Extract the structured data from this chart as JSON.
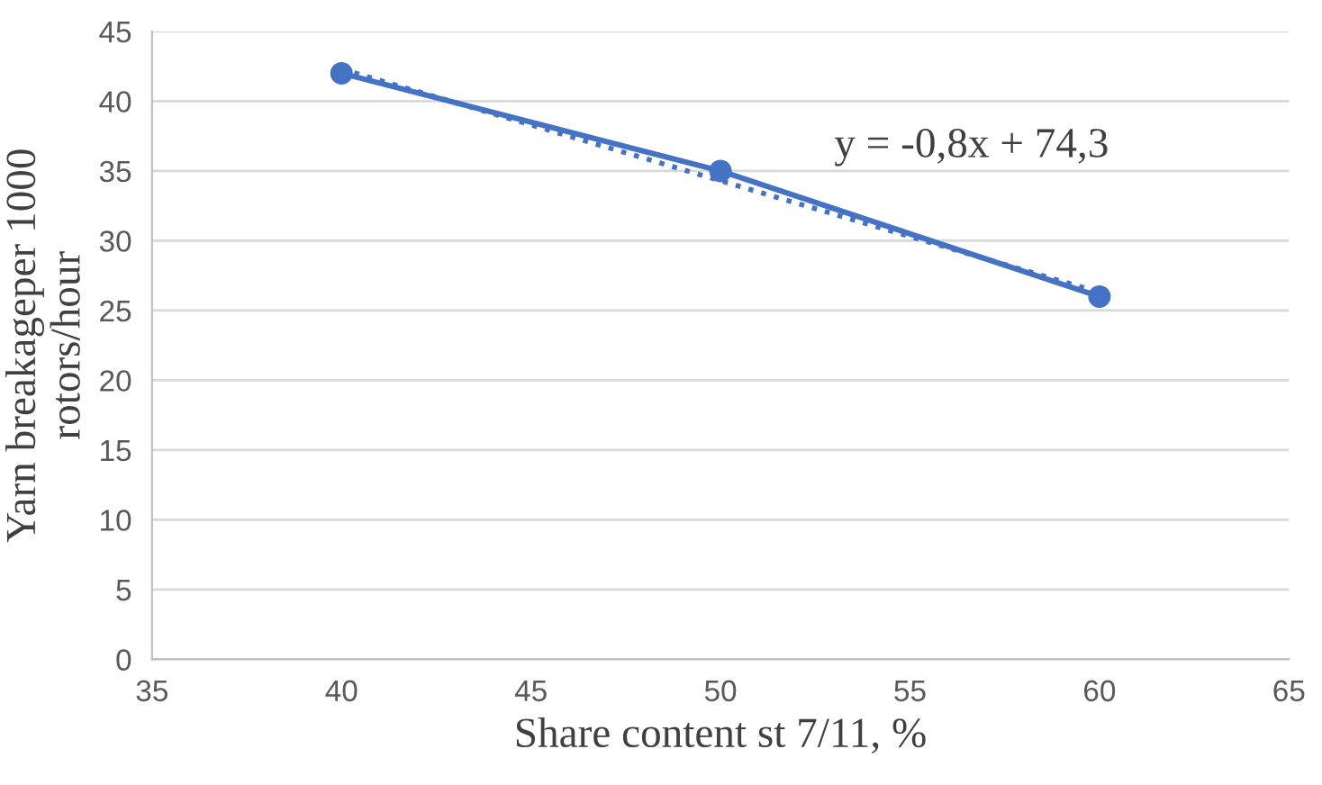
{
  "chart_data": {
    "type": "line",
    "xlabel": "Share content st 7/11, %",
    "ylabel": "Yarn breakageper 1000\nrotors/hour",
    "xlim": [
      35,
      65
    ],
    "xticks": [
      35,
      40,
      45,
      50,
      55,
      60,
      65
    ],
    "ylim": [
      0,
      45
    ],
    "yticks": [
      0,
      5,
      10,
      15,
      20,
      25,
      30,
      35,
      40,
      45
    ],
    "grid": "y",
    "legend": false,
    "series": [
      {
        "color": "#4472c4",
        "x": [
          40,
          50,
          60
        ],
        "values": [
          42,
          35,
          26
        ],
        "marker": "circle",
        "line_style": "solid"
      },
      {
        "type": "line",
        "color": "#4472c4",
        "x": [
          40,
          60
        ],
        "values": [
          42.3,
          26.3
        ],
        "marker": "none",
        "line_style": "dotted"
      }
    ],
    "annotations": [
      "y = -0,8x + 74,3"
    ]
  }
}
